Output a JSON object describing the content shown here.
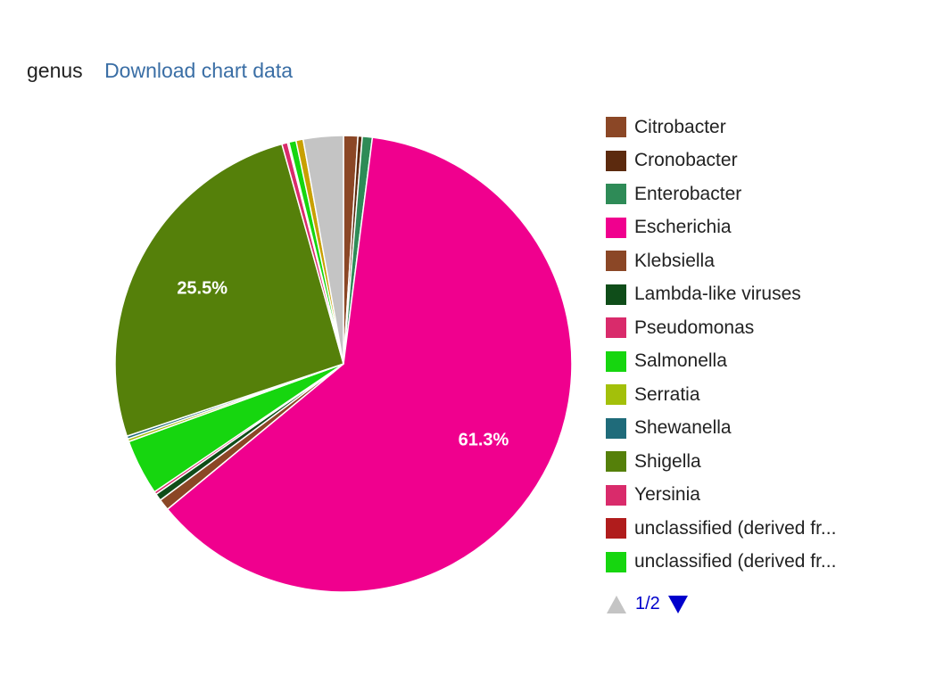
{
  "header": {
    "title": "genus",
    "download_label": "Download chart data"
  },
  "chart_data": {
    "type": "pie",
    "slice_text": [
      "61.3%",
      "25.5%"
    ],
    "slices": [
      {
        "label": "Citrobacter",
        "value": 1.0,
        "color": "#8b4726"
      },
      {
        "label": "Cronobacter",
        "value": 0.3,
        "color": "#5c2a0e"
      },
      {
        "label": "Enterobacter",
        "value": 0.7,
        "color": "#2e8b57"
      },
      {
        "label": "Escherichia",
        "value": 61.3,
        "color": "#f0008e",
        "text": "61.3%"
      },
      {
        "label": "Klebsiella",
        "value": 0.8,
        "color": "#8b4726"
      },
      {
        "label": "Lambda-like viruses",
        "value": 0.5,
        "color": "#0f4d19"
      },
      {
        "label": "Pseudomonas",
        "value": 0.2,
        "color": "#d92b6b"
      },
      {
        "label": "Salmonella",
        "value": 3.9,
        "color": "#16d60f"
      },
      {
        "label": "Serratia",
        "value": 0.2,
        "color": "#a3c00a"
      },
      {
        "label": "Shewanella",
        "value": 0.2,
        "color": "#1f6b7a"
      },
      {
        "label": "Shigella",
        "value": 25.5,
        "color": "#55800a",
        "text": "25.5%"
      },
      {
        "label": "Yersinia",
        "value": 0.4,
        "color": "#d92b6b"
      },
      {
        "label": "unclassified (derived fr...",
        "value": 0.1,
        "color": "#b01c1c"
      },
      {
        "label": "unclassified (derived fr...",
        "value": 0.5,
        "color": "#16d60f"
      },
      {
        "value": 0.5,
        "color": "#c8a000"
      },
      {
        "value": 2.8,
        "color": "#c4c4c4"
      }
    ]
  },
  "legend": {
    "page_text": "1/2",
    "prev_color": "#c4c4c4",
    "next_color": "#0000cc"
  }
}
